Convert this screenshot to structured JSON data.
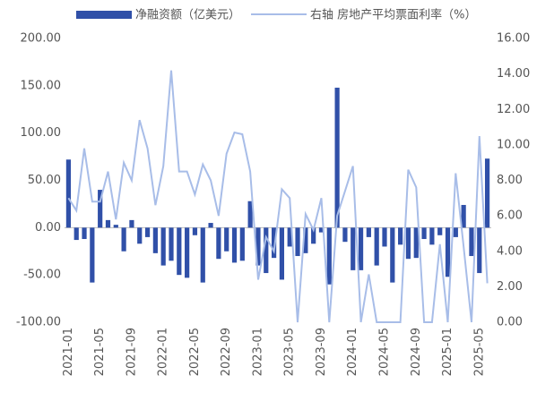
{
  "chart_data": {
    "type": "bar",
    "categories": [
      "2021-01",
      null,
      null,
      null,
      "2021-05",
      null,
      null,
      null,
      "2021-09",
      null,
      null,
      null,
      "2022-01",
      null,
      null,
      null,
      "2022-05",
      null,
      null,
      null,
      "2022-09",
      null,
      null,
      null,
      "2023-01",
      null,
      null,
      null,
      "2023-05",
      null,
      null,
      null,
      "2023-09",
      null,
      null,
      null,
      "2024-01",
      null,
      null,
      null,
      "2024-05",
      null,
      null,
      null,
      "2024-09",
      null,
      null,
      null,
      "2025-01",
      null,
      null,
      null,
      "2025-05",
      null
    ],
    "series": [
      {
        "name": "净融资额（亿美元）",
        "type": "bar",
        "color": "#3050a8",
        "values": [
          72,
          -13,
          -12,
          -58,
          40,
          8,
          3,
          -25,
          8,
          -17,
          -10,
          -27,
          -40,
          -35,
          -50,
          -53,
          -8,
          -58,
          5,
          -33,
          -25,
          -37,
          -35,
          28,
          -40,
          -48,
          -32,
          -55,
          -20,
          -30,
          -27,
          -17,
          -5,
          -60,
          148,
          -15,
          -45,
          -45,
          -10,
          -40,
          -20,
          -58,
          -18,
          -33,
          -32,
          -12,
          -18,
          -8,
          -52,
          -10,
          24,
          -30,
          -48,
          73
        ]
      },
      {
        "name": "右轴 房地产平均票面利率（%）",
        "type": "line",
        "axis": "y2",
        "color": "#a8bde8",
        "values": [
          7.0,
          6.3,
          9.8,
          6.8,
          6.8,
          8.5,
          5.8,
          9.0,
          8.0,
          11.4,
          9.8,
          6.6,
          8.8,
          14.2,
          8.5,
          8.5,
          7.2,
          8.9,
          8.0,
          6.0,
          9.5,
          10.7,
          10.6,
          8.5,
          2.4,
          4.8,
          4.0,
          7.5,
          7.0,
          0,
          6.1,
          5.2,
          7.0,
          0,
          6.0,
          7.4,
          8.8,
          0,
          2.7,
          0,
          0,
          0,
          0,
          8.6,
          7.6,
          0,
          0,
          4.4,
          0,
          8.4,
          4.3,
          0,
          10.5,
          2.2
        ]
      }
    ],
    "ylim": [
      -100,
      200
    ],
    "yticks": [
      {
        "value": -100,
        "label": "-100.00"
      },
      {
        "value": -50,
        "label": "-50.00"
      },
      {
        "value": 0,
        "label": "0.00"
      },
      {
        "value": 50,
        "label": "50.00"
      },
      {
        "value": 100,
        "label": "100.00"
      },
      {
        "value": 150,
        "label": "150.00"
      },
      {
        "value": 200,
        "label": "200.00"
      }
    ],
    "y2lim": [
      0,
      16
    ],
    "y2ticks": [
      {
        "value": 0,
        "label": "0.00"
      },
      {
        "value": 2,
        "label": "2.00"
      },
      {
        "value": 4,
        "label": "4.00"
      },
      {
        "value": 6,
        "label": "6.00"
      },
      {
        "value": 8,
        "label": "8.00"
      },
      {
        "value": 10,
        "label": "10.00"
      },
      {
        "value": 12,
        "label": "12.00"
      },
      {
        "value": 14,
        "label": "14.00"
      },
      {
        "value": 16,
        "label": "16.00"
      }
    ],
    "legend": "top"
  }
}
